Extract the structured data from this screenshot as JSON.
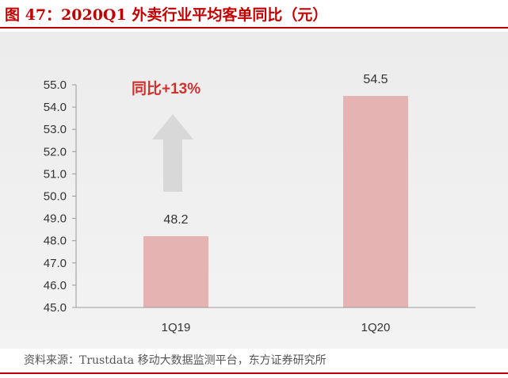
{
  "header": {
    "title": "图 47：2020Q1 外卖行业平均客单同比（元）"
  },
  "annotation": {
    "text": "同比+13%",
    "arrow_icon": "up-arrow-icon"
  },
  "source": "资料来源：Trustdata 移动大数据监测平台，东方证券研究所",
  "colors": {
    "accent": "#c00000",
    "bar": "#e6b3b3",
    "arrow": "#d8d8d8"
  },
  "chart_data": {
    "type": "bar",
    "categories": [
      "1Q19",
      "1Q20"
    ],
    "values": [
      48.2,
      54.5
    ],
    "data_labels": [
      "48.2",
      "54.5"
    ],
    "ylim": [
      45.0,
      55.0
    ],
    "yticks": [
      "45.0",
      "46.0",
      "47.0",
      "48.0",
      "49.0",
      "50.0",
      "51.0",
      "52.0",
      "53.0",
      "54.0",
      "55.0"
    ],
    "title": "",
    "xlabel": "",
    "ylabel": "",
    "grid": false,
    "legend": "none"
  }
}
